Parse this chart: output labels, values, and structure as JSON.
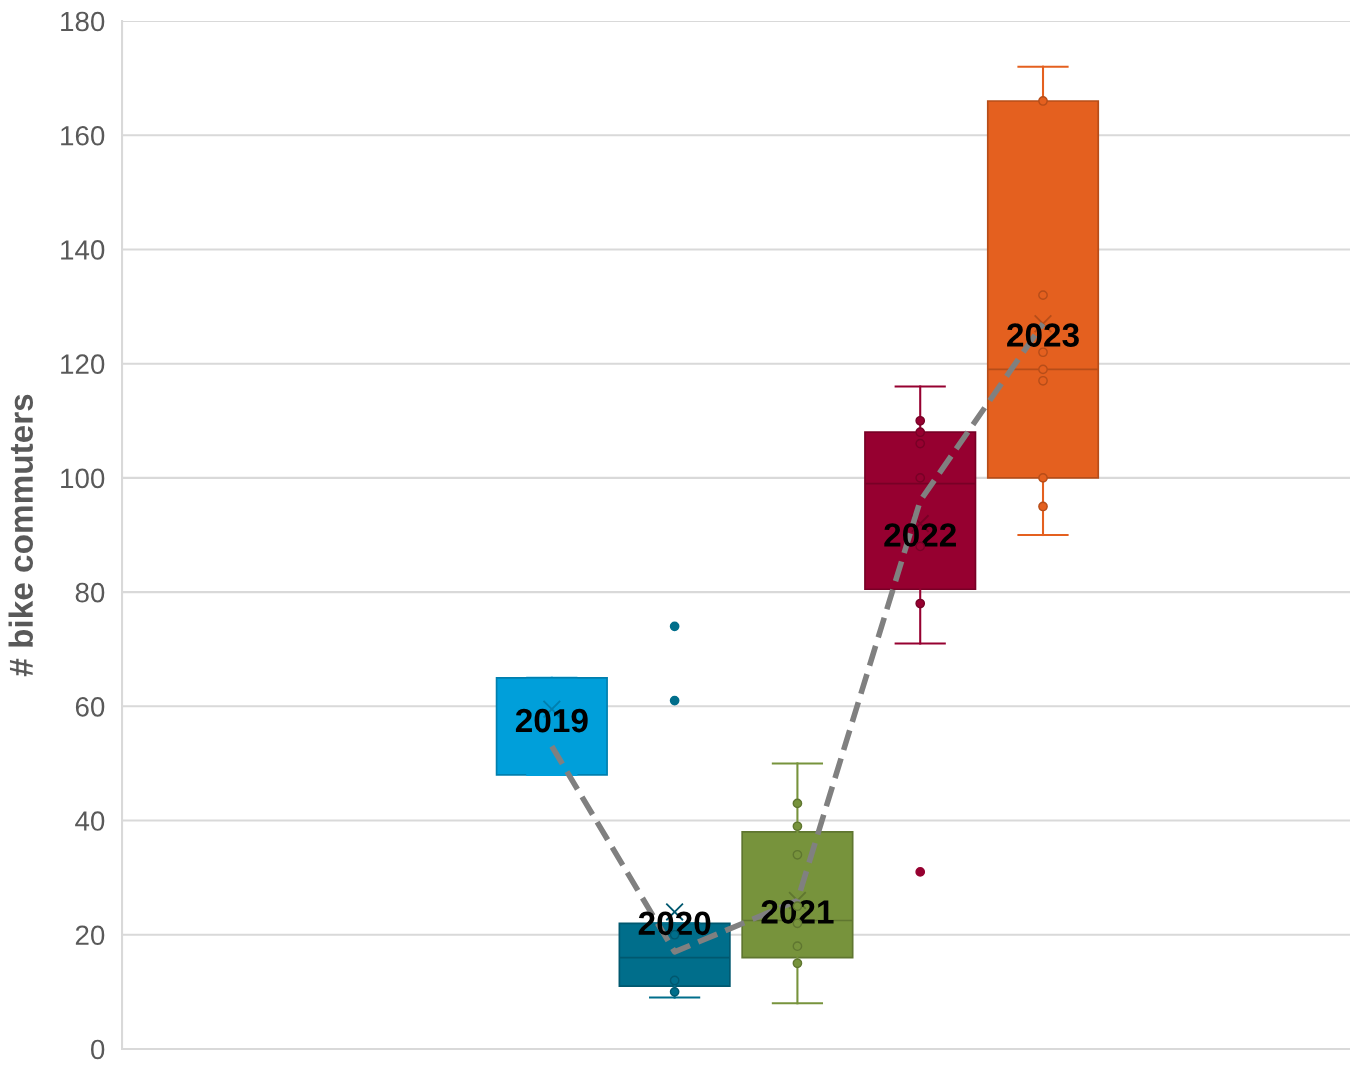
{
  "chart_data": {
    "type": "box",
    "ylabel": "# bike commuters",
    "categories": [
      null,
      null,
      null,
      null,
      null,
      null,
      null,
      null,
      null,
      null
    ],
    "ylim": [
      0,
      180
    ],
    "yticks": [
      0,
      20,
      40,
      60,
      80,
      100,
      120,
      140,
      160,
      180
    ],
    "grid": "y",
    "tick_labels": "y",
    "series": [
      {
        "colors": [
          null,
          null,
          null,
          "#009fda",
          "#006e8b",
          "#77933c",
          "#960030",
          "#e4601f",
          null,
          null
        ],
        "boxes": [
          null,
          null,
          null,
          {
            "low": 48,
            "q1": 48,
            "median": 65,
            "q3": 65,
            "high": 65,
            "mean": 59.5
          },
          {
            "low": 9,
            "q1": 11,
            "median": 16,
            "q3": 22,
            "high": 22,
            "mean": 24,
            "outliers": [
              61,
              74
            ]
          },
          {
            "low": 8,
            "q1": 16,
            "median": 22.5,
            "q3": 38,
            "high": 50,
            "mean": 26
          },
          {
            "low": 71,
            "q1": 80.5,
            "median": 99,
            "q3": 108,
            "high": 116,
            "mean": 92,
            "outliers": [
              31
            ]
          },
          {
            "low": 90,
            "q1": 100,
            "median": 119,
            "q3": 166,
            "high": 172,
            "mean": 127
          },
          null,
          null
        ]
      },
      {
        "type": "scatter",
        "marker": "circle",
        "colors": [
          null,
          null,
          null,
          null,
          "#006e8b",
          "#77933c",
          "#960030",
          "#e4601f",
          null,
          null
        ],
        "values": [
          null,
          null,
          null,
          null,
          20,
          43,
          110,
          166,
          null,
          null
        ]
      },
      {
        "type": "scatter",
        "marker": "circle",
        "colors": [
          null,
          null,
          null,
          null,
          "#006e8b",
          "#77933c",
          "#960030",
          "#e4601f",
          null,
          null
        ],
        "values": [
          null,
          null,
          null,
          null,
          12,
          39,
          108,
          132,
          null,
          null
        ]
      },
      {
        "type": "scatter",
        "marker": "circle",
        "colors": [
          null,
          null,
          null,
          null,
          "#006e8b",
          "#77933c",
          "#960030",
          "#e4601f",
          null,
          null
        ],
        "values": [
          null,
          null,
          null,
          null,
          10,
          34,
          106,
          122,
          null,
          null
        ]
      },
      {
        "type": "scatter",
        "marker": "circle",
        "colors": [
          null,
          null,
          null,
          null,
          null,
          "#77933c",
          "#960030",
          "#e4601f",
          null,
          null
        ],
        "values": [
          null,
          null,
          null,
          null,
          null,
          25,
          100,
          119,
          null,
          null
        ]
      },
      {
        "type": "scatter",
        "marker": "circle",
        "colors": [
          null,
          null,
          null,
          null,
          null,
          "#77933c",
          "#960030",
          "#e4601f",
          null,
          null
        ],
        "values": [
          null,
          null,
          null,
          null,
          null,
          22,
          88,
          117,
          null,
          null
        ]
      },
      {
        "type": "scatter",
        "marker": "circle",
        "colors": [
          null,
          null,
          null,
          null,
          null,
          "#77933c",
          "#960030",
          "#e4601f",
          null,
          null
        ],
        "values": [
          null,
          null,
          null,
          null,
          null,
          18,
          78,
          100,
          null,
          null
        ]
      },
      {
        "type": "scatter",
        "marker": "circle",
        "colors": [
          null,
          null,
          null,
          null,
          null,
          "#77933c",
          null,
          "#e4601f",
          null,
          null
        ],
        "values": [
          null,
          null,
          null,
          null,
          null,
          15,
          null,
          95,
          null,
          null
        ]
      },
      {
        "type": "line",
        "color": "#808080",
        "line_style": "dashed",
        "marker": "none",
        "values": [
          null,
          null,
          null,
          53,
          17,
          26,
          96,
          127,
          null,
          null
        ]
      }
    ],
    "annotations": [
      "2019",
      "2020",
      "2021",
      "2022",
      "2023"
    ]
  }
}
